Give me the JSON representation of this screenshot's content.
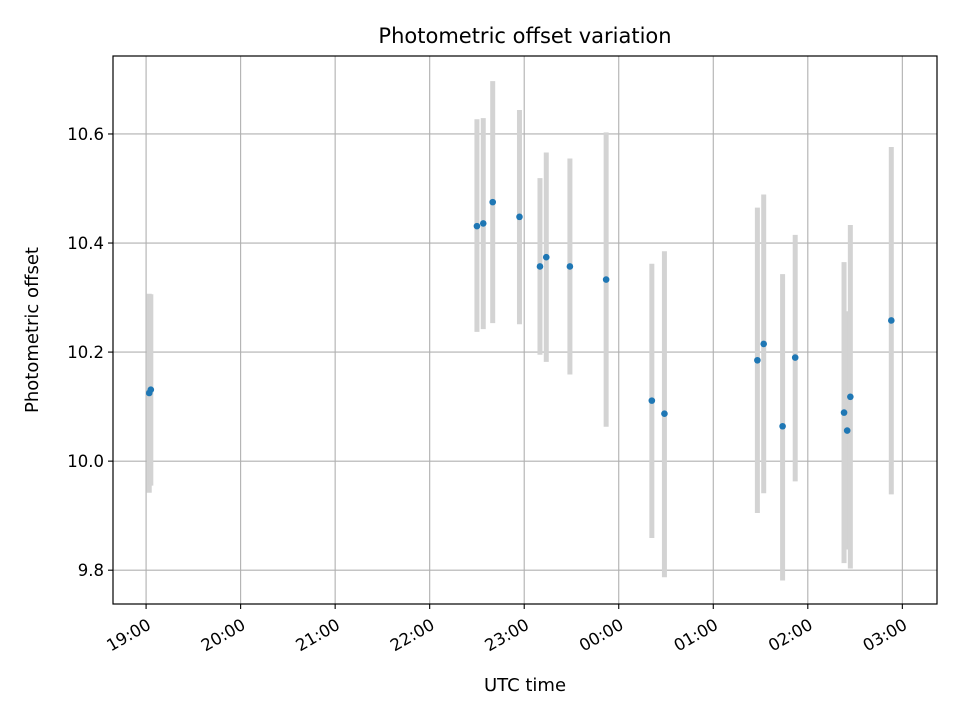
{
  "chart_data": {
    "type": "scatter",
    "title": "Photometric offset variation",
    "xlabel": "UTC time",
    "ylabel": "Photometric offset",
    "x_ticks": [
      "19:00",
      "20:00",
      "21:00",
      "22:00",
      "23:00",
      "00:00",
      "01:00",
      "02:00",
      "03:00"
    ],
    "y_ticks": [
      "9.8",
      "10.0",
      "10.2",
      "10.4",
      "10.6"
    ],
    "x_range": [
      "18:39",
      "03:22"
    ],
    "ylim": [
      9.738,
      10.743
    ],
    "grid": true,
    "colors": {
      "point": "#1f77b4",
      "errorbar": "#d3d3d3",
      "grid": "#b0b0b0"
    },
    "points": [
      {
        "time": "19:02",
        "y": 10.125,
        "yerr_low": 9.942,
        "yerr_high": 10.307
      },
      {
        "time": "19:03",
        "y": 10.131,
        "yerr_low": 9.955,
        "yerr_high": 10.306
      },
      {
        "time": "22:30",
        "y": 10.431,
        "yerr_low": 10.237,
        "yerr_high": 10.627
      },
      {
        "time": "22:34",
        "y": 10.436,
        "yerr_low": 10.242,
        "yerr_high": 10.629
      },
      {
        "time": "22:40",
        "y": 10.475,
        "yerr_low": 10.253,
        "yerr_high": 10.697
      },
      {
        "time": "22:57",
        "y": 10.448,
        "yerr_low": 10.251,
        "yerr_high": 10.644
      },
      {
        "time": "23:10",
        "y": 10.357,
        "yerr_low": 10.195,
        "yerr_high": 10.519
      },
      {
        "time": "23:14",
        "y": 10.374,
        "yerr_low": 10.182,
        "yerr_high": 10.566
      },
      {
        "time": "23:29",
        "y": 10.357,
        "yerr_low": 10.159,
        "yerr_high": 10.555
      },
      {
        "time": "23:52",
        "y": 10.333,
        "yerr_low": 10.063,
        "yerr_high": 10.603
      },
      {
        "time": "00:21",
        "y": 10.111,
        "yerr_low": 9.859,
        "yerr_high": 10.362
      },
      {
        "time": "00:29",
        "y": 10.087,
        "yerr_low": 9.787,
        "yerr_high": 10.385
      },
      {
        "time": "01:28",
        "y": 10.185,
        "yerr_low": 9.905,
        "yerr_high": 10.465
      },
      {
        "time": "01:32",
        "y": 10.215,
        "yerr_low": 9.941,
        "yerr_high": 10.489
      },
      {
        "time": "01:44",
        "y": 10.064,
        "yerr_low": 9.781,
        "yerr_high": 10.343
      },
      {
        "time": "01:52",
        "y": 10.19,
        "yerr_low": 9.963,
        "yerr_high": 10.415
      },
      {
        "time": "02:23",
        "y": 10.089,
        "yerr_low": 9.813,
        "yerr_high": 10.365
      },
      {
        "time": "02:25",
        "y": 10.056,
        "yerr_low": 9.838,
        "yerr_high": 10.275
      },
      {
        "time": "02:27",
        "y": 10.118,
        "yerr_low": 9.803,
        "yerr_high": 10.433
      },
      {
        "time": "02:53",
        "y": 10.258,
        "yerr_low": 9.939,
        "yerr_high": 10.576
      }
    ]
  }
}
